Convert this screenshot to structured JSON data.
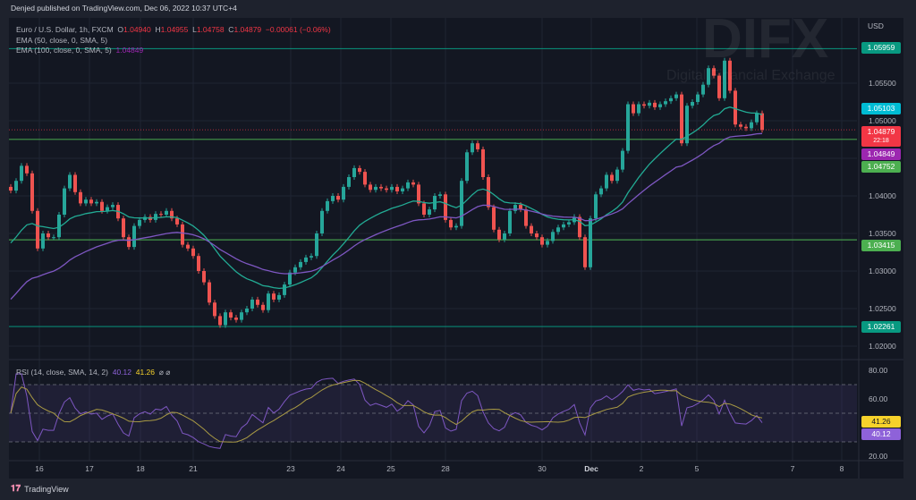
{
  "header": {
    "published": "Denjed published on TradingView.com, Dec 06, 2022 10:37 UTC+4"
  },
  "legend": {
    "symbol": "Euro / U.S. Dollar, 1h, FXCM",
    "o_label": "O",
    "o": "1.04940",
    "h_label": "H",
    "h": "1.04955",
    "l_label": "L",
    "l": "1.04758",
    "c_label": "C",
    "c": "1.04879",
    "change": "−0.00061 (−0.06%)",
    "ema50": "EMA (50, close, 0, SMA, 5)",
    "ema100": "EMA (100, close, 0, SMA, 5)",
    "ema100_value": "1.04849",
    "rsi": "RSI (14, close, SMA, 14, 2)",
    "rsi_value": "40.12",
    "rsi_sma_value": "41.26",
    "rsi_extra": "⌀ ⌀"
  },
  "watermark": {
    "logo": "DIFX",
    "tagline": "Digital Financial Exchange"
  },
  "footer": {
    "brand": "TradingView"
  },
  "colors": {
    "up": "#26a69a",
    "down": "#ef5350",
    "ema50": "#22ab94",
    "ema100": "#7e57c2",
    "rsi": "#7e57c2",
    "rsi_sma": "#a99a44",
    "background": "#131722"
  },
  "chart_data": {
    "type": "candlestick",
    "symbol": "EUR/USD",
    "timeframe": "1h",
    "currency_label": "USD",
    "y_ticks": [
      "1.05500",
      "1.05000",
      "1.04000",
      "1.03500",
      "1.03000",
      "1.02500",
      "1.02000"
    ],
    "ylim": [
      1.0195,
      1.062
    ],
    "x_ticks": [
      "16",
      "17",
      "18",
      "21",
      "23",
      "24",
      "25",
      "28",
      "30",
      "Dec",
      "2",
      "5",
      "7",
      "8"
    ],
    "close": [
      1.0407,
      1.042,
      1.044,
      1.043,
      1.038,
      1.033,
      1.035,
      1.0345,
      1.0345,
      1.0375,
      1.041,
      1.0428,
      1.0405,
      1.039,
      1.0395,
      1.039,
      1.0392,
      1.038,
      1.0385,
      1.0388,
      1.037,
      1.0345,
      1.0332,
      1.036,
      1.0368,
      1.0372,
      1.0368,
      1.0376,
      1.0375,
      1.038,
      1.037,
      1.0362,
      1.0335,
      1.033,
      1.032,
      1.03,
      1.0285,
      1.0258,
      1.024,
      1.0228,
      1.0245,
      1.0238,
      1.0235,
      1.0245,
      1.025,
      1.0262,
      1.0255,
      1.0248,
      1.027,
      1.0262,
      1.0268,
      1.0282,
      1.0298,
      1.0305,
      1.0312,
      1.0318,
      1.032,
      1.035,
      1.038,
      1.0393,
      1.04,
      1.0395,
      1.0412,
      1.0425,
      1.0437,
      1.0432,
      1.0415,
      1.0408,
      1.0412,
      1.041,
      1.0408,
      1.0412,
      1.0406,
      1.041,
      1.0418,
      1.0415,
      1.039,
      1.0375,
      1.0382,
      1.04,
      1.0402,
      1.0368,
      1.0358,
      1.036,
      1.042,
      1.0458,
      1.047,
      1.0462,
      1.0425,
      1.0385,
      1.0355,
      1.0342,
      1.035,
      1.038,
      1.0388,
      1.0382,
      1.036,
      1.035,
      1.0345,
      1.0335,
      1.034,
      1.0352,
      1.0358,
      1.0362,
      1.0365,
      1.0372,
      1.0345,
      1.0305,
      1.037,
      1.0402,
      1.041,
      1.0428,
      1.042,
      1.0435,
      1.046,
      1.0522,
      1.051,
      1.0522,
      1.052,
      1.0524,
      1.0518,
      1.0522,
      1.0526,
      1.053,
      1.0535,
      1.047,
      1.052,
      1.0525,
      1.0535,
      1.0548,
      1.057,
      1.056,
      1.053,
      1.058,
      1.054,
      1.0495,
      1.0492,
      1.049,
      1.0498,
      1.051,
      1.04879
    ],
    "levels": [
      {
        "value": 1.05959,
        "label": "1.05959",
        "color": "#089981"
      },
      {
        "value": 1.04752,
        "label": "1.04752",
        "color": "#4caf50"
      },
      {
        "value": 1.03415,
        "label": "1.03415",
        "color": "#4caf50"
      },
      {
        "value": 1.02261,
        "label": "1.02261",
        "color": "#089981"
      }
    ],
    "price_tags": [
      {
        "label": "1.05103",
        "sub": "",
        "value": 1.05103,
        "color": "#00bcd4"
      },
      {
        "label": "1.04879",
        "sub": "22:18",
        "value": 1.04879,
        "color": "#f23645"
      },
      {
        "label": "1.04849",
        "sub": "",
        "value": 1.04849,
        "color": "#9c27b0"
      }
    ],
    "rsi": {
      "y_ticks": [
        "80.00",
        "60.00",
        "20.00"
      ],
      "ylim": [
        20,
        80
      ],
      "band": [
        30,
        70
      ],
      "value_tag": "40.12",
      "sma_tag": "41.26"
    }
  }
}
